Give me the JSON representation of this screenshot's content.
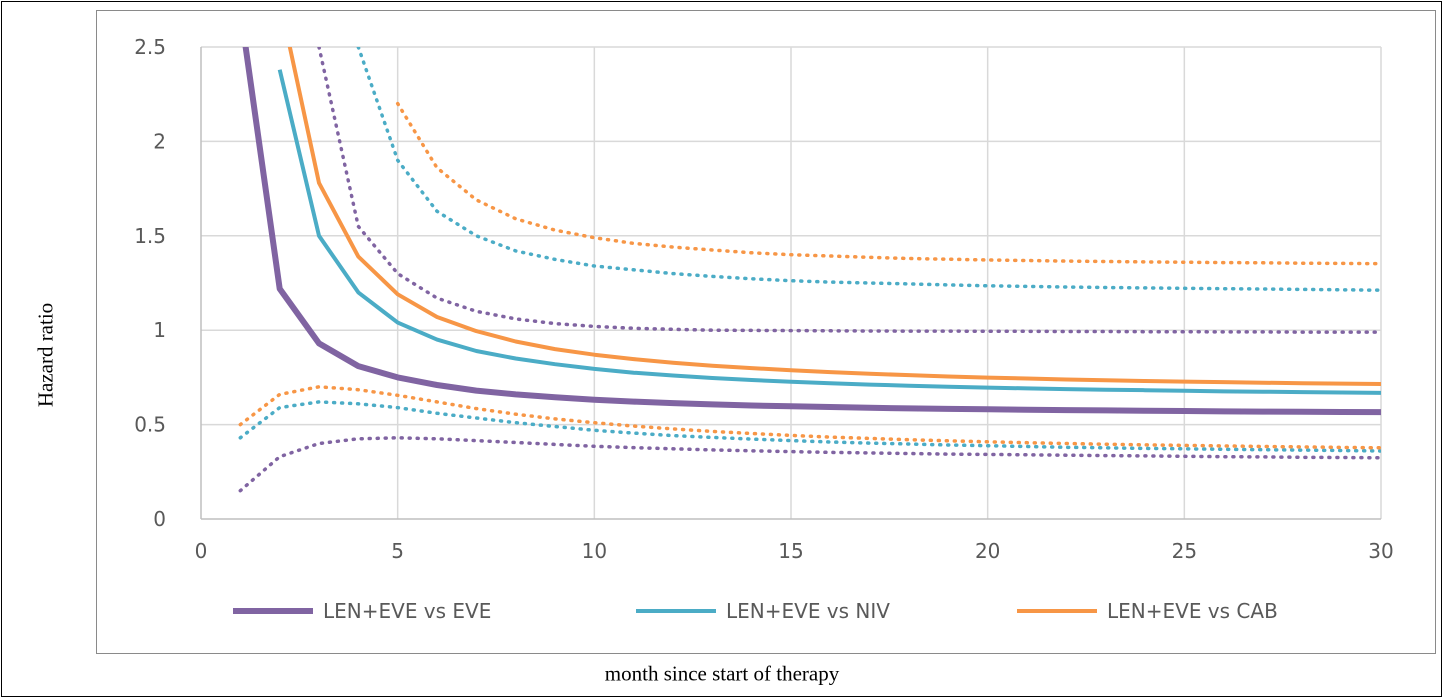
{
  "chart_data": {
    "type": "line",
    "title": "",
    "xlabel": "month since start of therapy",
    "ylabel": "Hazard ratio",
    "xlim": [
      0,
      30
    ],
    "ylim": [
      0,
      2.5
    ],
    "x_ticks": [
      "0",
      "5",
      "10",
      "15",
      "20",
      "25",
      "30"
    ],
    "y_ticks": [
      "0",
      "0.5",
      "1",
      "1.5",
      "2",
      "2.5"
    ],
    "grid": true,
    "legend_position": "bottom",
    "x": [
      1,
      2,
      3,
      4,
      5,
      6,
      7,
      8,
      9,
      10,
      11,
      12,
      13,
      14,
      15,
      16,
      17,
      18,
      19,
      20,
      21,
      22,
      23,
      24,
      25,
      26,
      27,
      28,
      29,
      30
    ],
    "series": [
      {
        "name": "LEN+EVE vs EVE",
        "color": "#8064a2",
        "values": [
          2.7,
          1.22,
          0.93,
          0.81,
          0.75,
          0.71,
          0.68,
          0.66,
          0.645,
          0.632,
          0.622,
          0.614,
          0.607,
          0.601,
          0.597,
          0.593,
          0.589,
          0.586,
          0.583,
          0.581,
          0.579,
          0.577,
          0.575,
          0.573,
          0.572,
          0.57,
          0.569,
          0.568,
          0.567,
          0.566
        ],
        "lower": [
          0.15,
          0.33,
          0.4,
          0.425,
          0.43,
          0.425,
          0.415,
          0.405,
          0.395,
          0.385,
          0.378,
          0.372,
          0.366,
          0.361,
          0.357,
          0.353,
          0.35,
          0.347,
          0.344,
          0.342,
          0.34,
          0.338,
          0.336,
          0.334,
          0.332,
          0.33,
          0.329,
          0.327,
          0.326,
          0.324
        ],
        "upper": [
          null,
          null,
          2.5,
          1.55,
          1.3,
          1.17,
          1.1,
          1.06,
          1.035,
          1.02,
          1.01,
          1.005,
          1.0,
          0.999,
          0.998,
          0.997,
          0.996,
          0.995,
          0.995,
          0.994,
          0.994,
          0.993,
          0.993,
          0.992,
          0.992,
          0.991,
          0.991,
          0.99,
          0.99,
          0.99
        ]
      },
      {
        "name": "LEN+EVE vs NIV",
        "color": "#4bacc6",
        "values": [
          null,
          2.38,
          1.5,
          1.2,
          1.04,
          0.95,
          0.89,
          0.85,
          0.82,
          0.795,
          0.775,
          0.76,
          0.747,
          0.736,
          0.727,
          0.719,
          0.712,
          0.706,
          0.701,
          0.696,
          0.692,
          0.688,
          0.685,
          0.682,
          0.679,
          0.676,
          0.674,
          0.672,
          0.67,
          0.668
        ],
        "lower": [
          0.43,
          0.59,
          0.62,
          0.61,
          0.59,
          0.56,
          0.535,
          0.51,
          0.49,
          0.47,
          0.455,
          0.442,
          0.432,
          0.423,
          0.415,
          0.408,
          0.402,
          0.397,
          0.392,
          0.388,
          0.384,
          0.38,
          0.377,
          0.374,
          0.372,
          0.369,
          0.367,
          0.365,
          0.363,
          0.36
        ],
        "upper": [
          null,
          null,
          null,
          2.5,
          1.9,
          1.63,
          1.5,
          1.42,
          1.375,
          1.34,
          1.32,
          1.3,
          1.285,
          1.272,
          1.262,
          1.255,
          1.25,
          1.245,
          1.24,
          1.235,
          1.232,
          1.229,
          1.226,
          1.224,
          1.222,
          1.22,
          1.218,
          1.216,
          1.214,
          1.212
        ]
      },
      {
        "name": "LEN+EVE vs CAB",
        "color": "#f79646",
        "values": [
          null,
          2.75,
          1.78,
          1.39,
          1.19,
          1.07,
          0.995,
          0.94,
          0.9,
          0.87,
          0.847,
          0.828,
          0.812,
          0.799,
          0.788,
          0.778,
          0.769,
          0.762,
          0.755,
          0.749,
          0.744,
          0.739,
          0.735,
          0.731,
          0.728,
          0.725,
          0.722,
          0.719,
          0.717,
          0.715
        ],
        "lower": [
          0.5,
          0.66,
          0.7,
          0.685,
          0.655,
          0.62,
          0.585,
          0.555,
          0.53,
          0.51,
          0.492,
          0.477,
          0.464,
          0.453,
          0.443,
          0.434,
          0.427,
          0.42,
          0.414,
          0.409,
          0.404,
          0.4,
          0.396,
          0.393,
          0.39,
          0.387,
          0.384,
          0.382,
          0.379,
          0.377
        ],
        "upper": [
          null,
          null,
          null,
          null,
          2.2,
          1.86,
          1.69,
          1.59,
          1.53,
          1.49,
          1.46,
          1.44,
          1.425,
          1.41,
          1.4,
          1.393,
          1.386,
          1.38,
          1.376,
          1.372,
          1.369,
          1.366,
          1.364,
          1.362,
          1.36,
          1.358,
          1.357,
          1.355,
          1.354,
          1.352
        ]
      }
    ]
  }
}
